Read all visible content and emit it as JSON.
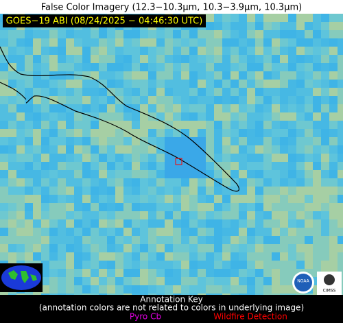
{
  "header": {
    "title": "False Color Imagery (12.3−10.3µm, 10.3−3.9µm, 10.3µm)",
    "badge": "GOES−19 ABI (08/24/2025 − 04:46:30 UTC)"
  },
  "annotation_key": {
    "title": "Annotation Key",
    "note": "(annotation colors are not related to colors in underlying image)",
    "items": [
      {
        "label": "Pyro Cb",
        "color": "#e000e0"
      },
      {
        "label": "Wildfire Detection",
        "color": "#ff0000"
      }
    ]
  },
  "logos": {
    "noaa": "NOAA",
    "cimss": "CIMSS"
  }
}
